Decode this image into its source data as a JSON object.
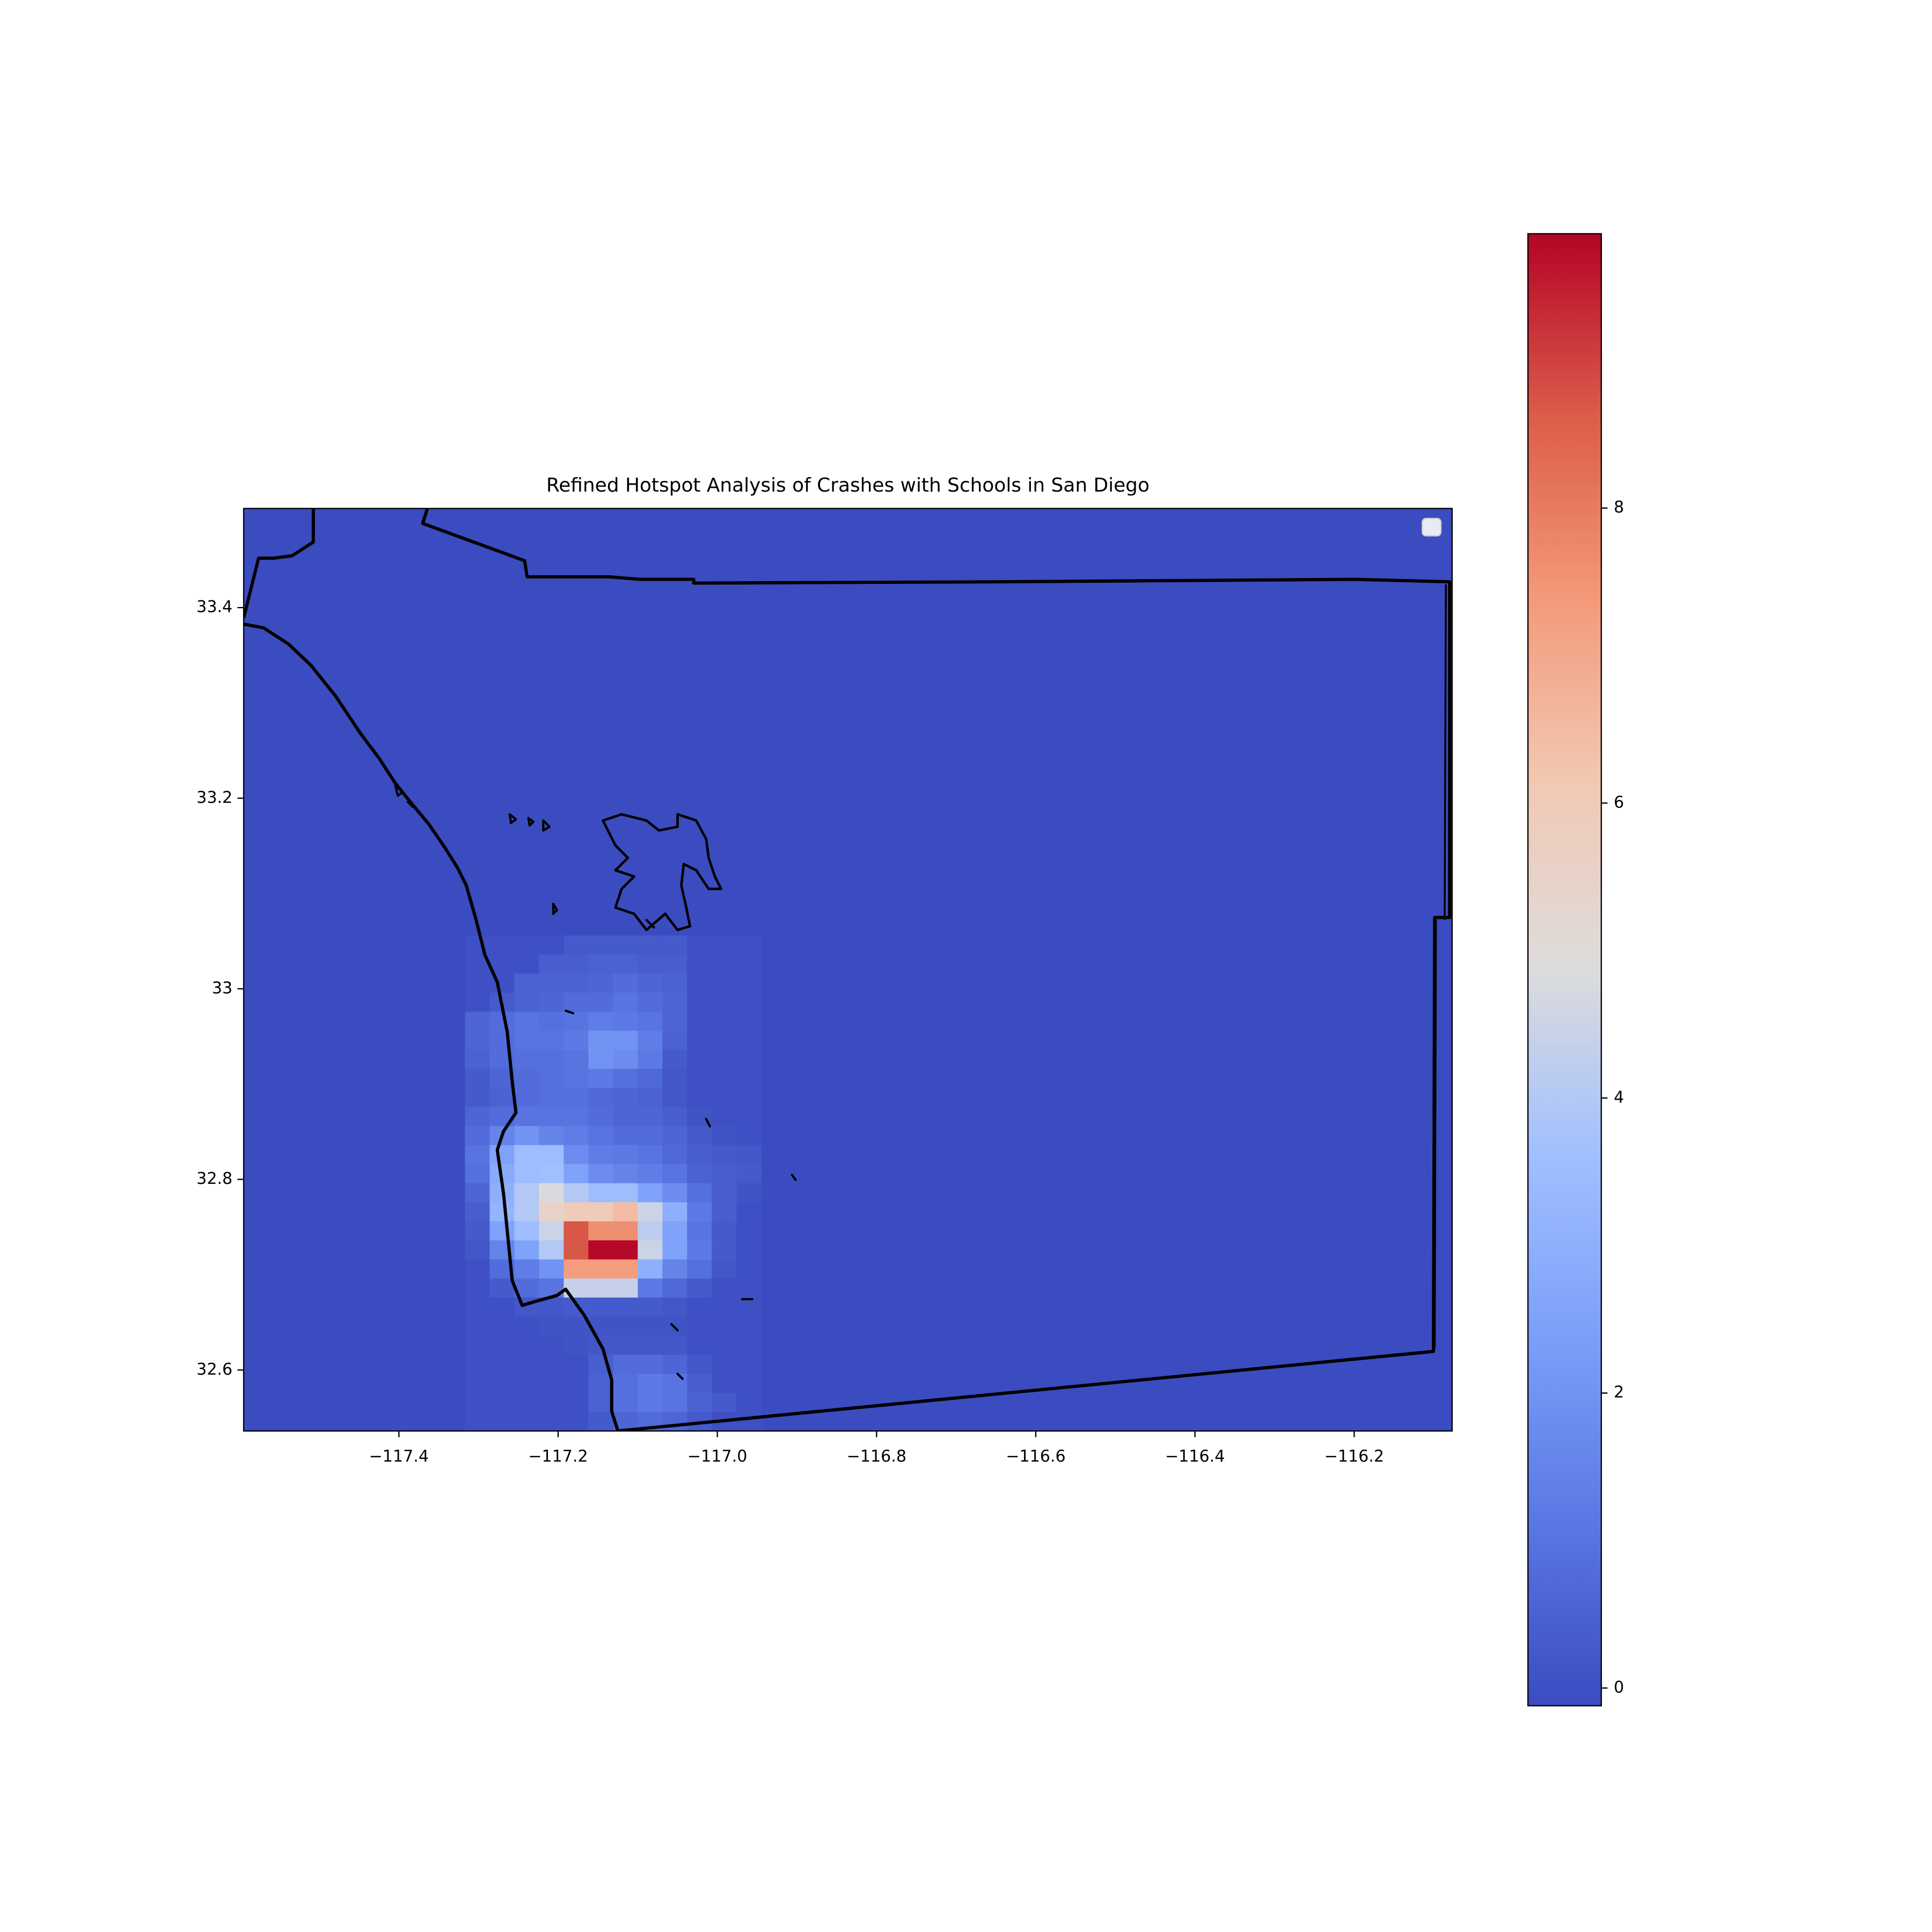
{
  "chart_data": {
    "type": "heatmap",
    "title": "Refined Hotspot Analysis of Crashes with Schools in San Diego",
    "colormap": "coolwarm",
    "xlim": [
      -117.595,
      -116.077
    ],
    "ylim": [
      32.536,
      33.504
    ],
    "xticks": [
      {
        "value": -117.4,
        "label": "−117.4"
      },
      {
        "value": -117.2,
        "label": "−117.2"
      },
      {
        "value": -117.0,
        "label": "−117.0"
      },
      {
        "value": -116.8,
        "label": "−116.8"
      },
      {
        "value": -116.6,
        "label": "−116.6"
      },
      {
        "value": -116.4,
        "label": "−116.4"
      },
      {
        "value": -116.2,
        "label": "−116.2"
      }
    ],
    "yticks": [
      32.6,
      32.8,
      33.0,
      33.2,
      33.4
    ],
    "x_edges": [
      -117.317,
      -117.286,
      -117.255,
      -117.224,
      -117.193,
      -117.162,
      -117.131,
      -117.1,
      -117.069,
      -117.038,
      -117.007,
      -116.976,
      -116.945
    ],
    "y_edges": [
      33.056,
      33.036,
      33.016,
      32.996,
      32.976,
      32.956,
      32.936,
      32.916,
      32.896,
      32.876,
      32.856,
      32.836,
      32.816,
      32.796,
      32.776,
      32.756,
      32.736,
      32.716,
      32.696,
      32.676,
      32.656,
      32.636,
      32.616,
      32.596,
      32.576,
      32.556,
      32.536
    ],
    "values": [
      [
        0,
        0,
        0,
        0,
        0.3,
        0.3,
        0.3,
        0.3,
        0.3,
        0,
        0,
        0
      ],
      [
        0,
        0,
        0,
        0.4,
        0.4,
        0.5,
        0.5,
        0.4,
        0.4,
        0,
        0,
        0
      ],
      [
        0,
        0,
        0.5,
        0.5,
        0.5,
        0.6,
        0.8,
        0.6,
        0.5,
        0,
        0,
        0
      ],
      [
        0,
        0.3,
        0.5,
        0.6,
        0.8,
        0.8,
        1.0,
        0.8,
        0.6,
        0,
        0,
        0
      ],
      [
        0.6,
        0.8,
        1.0,
        0.9,
        1.0,
        1.3,
        1.2,
        1.0,
        0.6,
        0,
        0,
        0
      ],
      [
        0.6,
        0.8,
        1.0,
        1.0,
        1.2,
        2.0,
        2.0,
        1.3,
        0.5,
        0,
        0,
        0
      ],
      [
        0.5,
        0.8,
        0.9,
        0.9,
        1.0,
        2.0,
        1.8,
        1.2,
        0.3,
        0,
        0,
        0
      ],
      [
        0.3,
        0.6,
        0.8,
        0.9,
        1.0,
        1.2,
        0.9,
        0.7,
        0.2,
        0,
        0,
        0
      ],
      [
        0.3,
        0.5,
        0.8,
        0.9,
        0.9,
        0.7,
        0.6,
        0.5,
        0.2,
        0,
        0,
        0
      ],
      [
        0.6,
        0.8,
        1.0,
        1.0,
        1.0,
        0.8,
        0.6,
        0.6,
        0.4,
        0.1,
        0,
        0
      ],
      [
        0.8,
        1.5,
        2.0,
        1.5,
        1.3,
        1.0,
        0.8,
        0.8,
        0.6,
        0.3,
        0.1,
        0
      ],
      [
        1.0,
        2.5,
        3.5,
        3.5,
        1.8,
        1.3,
        1.2,
        1.0,
        0.7,
        0.4,
        0.3,
        0.2
      ],
      [
        0.9,
        2.8,
        3.5,
        3.6,
        2.5,
        1.8,
        1.5,
        1.3,
        1.0,
        0.5,
        0.4,
        0.3
      ],
      [
        0.6,
        3.0,
        4.0,
        4.8,
        4.0,
        3.5,
        3.5,
        2.5,
        1.8,
        0.9,
        0.4,
        0.1
      ],
      [
        0.4,
        3.2,
        4.0,
        5.5,
        6.0,
        6.0,
        6.5,
        4.5,
        3.0,
        1.2,
        0.4,
        0
      ],
      [
        0.3,
        2.5,
        3.5,
        4.5,
        8.7,
        7.6,
        7.6,
        4.2,
        2.5,
        1.0,
        0.3,
        0
      ],
      [
        0.2,
        1.5,
        2.5,
        4.0,
        8.7,
        9.8,
        9.8,
        4.5,
        2.5,
        1.2,
        0.3,
        0
      ],
      [
        0,
        0.8,
        1.3,
        2.0,
        7.3,
        7.3,
        7.3,
        3.0,
        1.5,
        0.9,
        0.2,
        0
      ],
      [
        0,
        0.3,
        0.8,
        1.0,
        4.4,
        4.4,
        4.4,
        1.2,
        0.7,
        0.3,
        0,
        0
      ],
      [
        0,
        0,
        0.2,
        0.2,
        0.3,
        0.3,
        0.3,
        0.3,
        0.2,
        0,
        0,
        0
      ],
      [
        0,
        0,
        0,
        0.1,
        0.1,
        0.1,
        0.1,
        0.1,
        0.1,
        0,
        0,
        0
      ],
      [
        0,
        0,
        0,
        0,
        0.1,
        0.2,
        0.2,
        0.2,
        0.2,
        0,
        0,
        0
      ],
      [
        0,
        0,
        0,
        0,
        0,
        0.4,
        0.8,
        0.8,
        0.6,
        0.2,
        0,
        0
      ],
      [
        0,
        0,
        0,
        0,
        0,
        0.5,
        0.9,
        1.2,
        1.0,
        0.4,
        0,
        0
      ],
      [
        0,
        0,
        0,
        0,
        0,
        0.5,
        0.9,
        1.2,
        1.0,
        0.5,
        0.3,
        0
      ],
      [
        0,
        0,
        0,
        0,
        0,
        0.3,
        0.6,
        0.8,
        0.6,
        0.3,
        0,
        0
      ]
    ],
    "clim": [
      -0.12,
      9.86
    ],
    "cticks": [
      0,
      2,
      4,
      6,
      8
    ]
  }
}
